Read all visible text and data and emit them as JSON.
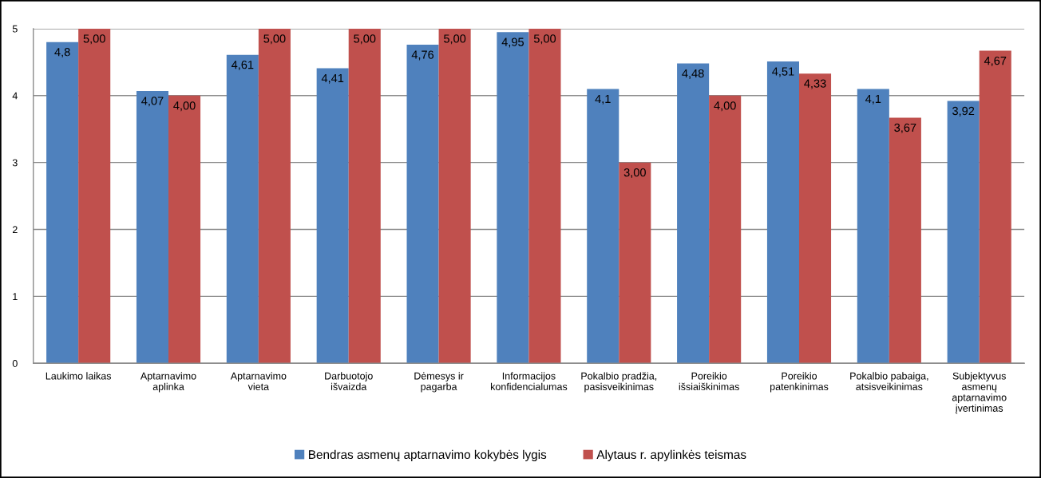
{
  "chart_data": {
    "type": "bar",
    "categories": [
      "Laukimo laikas",
      "Aptarnavimo\naplinka",
      "Aptarnavimo\nvieta",
      "Darbuotojo\nišvaizda",
      "Dėmesys ir\npagarba",
      "Informacijos\nkonfidencialumas",
      "Pokalbio pradžia,\npasisveikinimas",
      "Poreikio\nišsiaiškinimas",
      "Poreikio\npatenkinimas",
      "Pokalbio pabaiga,\natsisveikinimas",
      "Subjektyvus\nasmenų\naptarnavimo\nįvertinimas"
    ],
    "series": [
      {
        "name": "Bendras asmenų aptarnavimo kokybės lygis",
        "color": "#4f81bd",
        "values": [
          4.8,
          4.07,
          4.61,
          4.41,
          4.76,
          4.95,
          4.1,
          4.48,
          4.51,
          4.1,
          3.92
        ],
        "value_labels": [
          "4,8",
          "4,07",
          "4,61",
          "4,41",
          "4,76",
          "4,95",
          "4,1",
          "4,48",
          "4,51",
          "4,1",
          "3,92"
        ]
      },
      {
        "name": "Alytaus r. apylinkės teismas",
        "color": "#c0504d",
        "values": [
          5,
          4,
          5,
          5,
          5,
          5,
          3,
          4,
          4.33,
          3.67,
          4.67
        ],
        "value_labels": [
          "5,00",
          "4,00",
          "5,00",
          "5,00",
          "5,00",
          "5,00",
          "3,00",
          "4,00",
          "4,33",
          "3,67",
          "4,67"
        ]
      }
    ],
    "ylim": [
      0,
      5
    ],
    "yticks": [
      0,
      1,
      2,
      3,
      4,
      5
    ],
    "grid": "y",
    "legend": "bottom"
  }
}
